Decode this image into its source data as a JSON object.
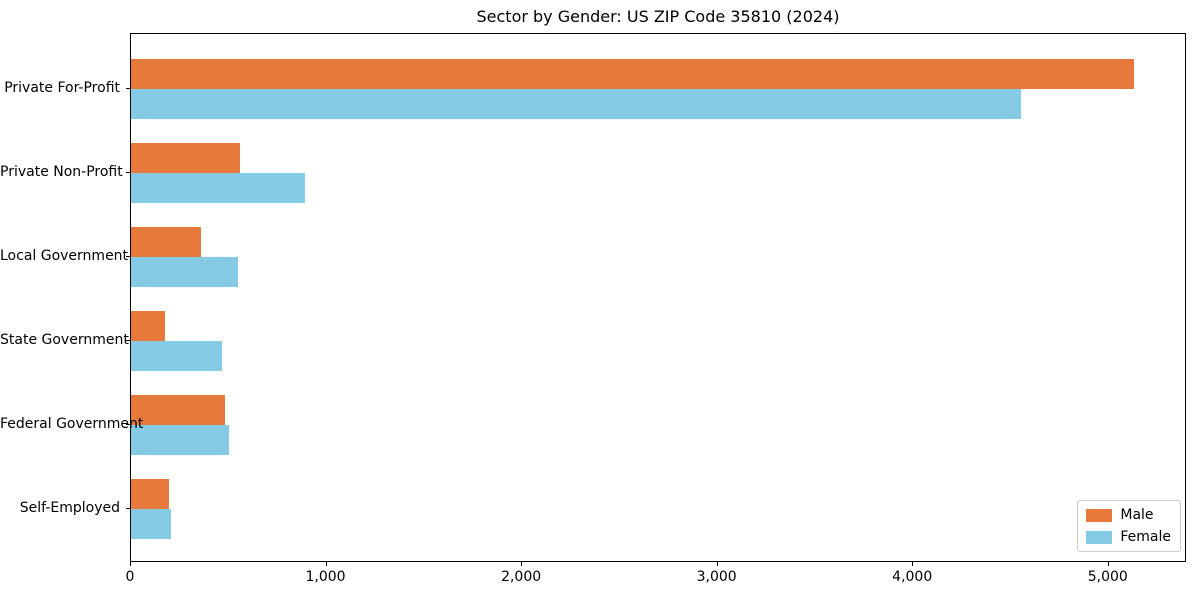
{
  "chart_data": {
    "type": "bar",
    "orientation": "horizontal",
    "title": "Sector by Gender: US ZIP Code 35810 (2024)",
    "categories": [
      "Private For-Profit",
      "Private Non-Profit",
      "Local Government",
      "State Government",
      "Federal Government",
      "Self-Employed"
    ],
    "series": [
      {
        "name": "Male",
        "color": "#e8793c",
        "values": [
          5140,
          560,
          360,
          175,
          480,
          195
        ]
      },
      {
        "name": "Female",
        "color": "#85cbe5",
        "values": [
          4560,
          890,
          550,
          465,
          500,
          205
        ]
      }
    ],
    "xlabel": "",
    "ylabel": "",
    "xlim": [
      0,
      5400
    ],
    "x_ticks": [
      0,
      1000,
      2000,
      3000,
      4000,
      5000
    ],
    "x_tick_labels": [
      "0",
      "1,000",
      "2,000",
      "3,000",
      "4,000",
      "5,000"
    ],
    "grid": false,
    "legend_position": "lower right",
    "background_color": "#ffffff",
    "spine_color": "#000000"
  }
}
